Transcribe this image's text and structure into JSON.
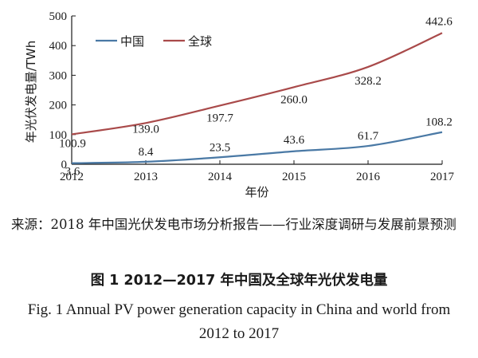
{
  "chart_data": {
    "type": "line",
    "categories": [
      "2012",
      "2013",
      "2014",
      "2015",
      "2016",
      "2017"
    ],
    "x": [
      2012,
      2013,
      2014,
      2015,
      2016,
      2017
    ],
    "ylabel": "年光伏发电量/TWh",
    "xlabel": "年份",
    "ylim": [
      0,
      500
    ],
    "yticks": [
      0,
      100,
      200,
      300,
      400,
      500
    ],
    "grid": false,
    "legend_position": "top-left",
    "series": [
      {
        "name": "中国",
        "color": "#4a79a5",
        "values": [
          3.6,
          8.4,
          23.5,
          43.6,
          61.7,
          108.2
        ],
        "labels": [
          "3.6",
          "8.4",
          "23.5",
          "43.6",
          "61.7",
          "108.2"
        ]
      },
      {
        "name": "全球",
        "color": "#a94a4a",
        "values": [
          100.9,
          139.0,
          197.7,
          260.0,
          328.2,
          442.6
        ],
        "labels": [
          "100.9",
          "139.0",
          "197.7",
          "260.0",
          "328.2",
          "442.6"
        ]
      }
    ]
  },
  "caption": {
    "source": "来源：2018 年中国光伏发电市场分析报告——行业深度调研与发展前景预测",
    "title_cn": "图 1  2012—2017 年中国及全球年光伏发电量",
    "title_en": "Fig. 1  Annual PV power generation capacity in China and world from 2012 to 2017"
  }
}
